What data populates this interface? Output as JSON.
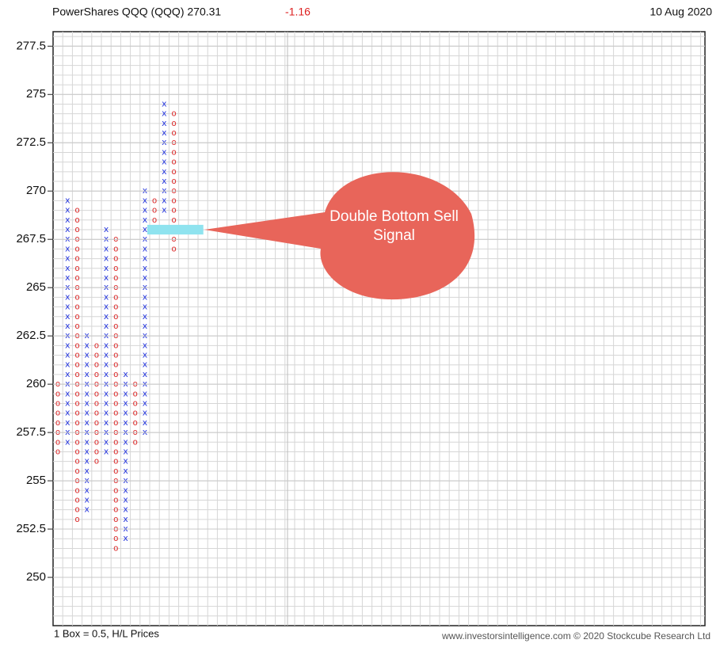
{
  "chart_data": {
    "type": "point-and-figure",
    "title": "PowerShares QQQ (QQQ) 270.31",
    "change": "-1.16",
    "date": "10 Aug 2020",
    "box_note": "1 Box = 0.5, H/L Prices",
    "source": "www.investorsintelligence.com  © 2020  Stockcube  Research  Ltd",
    "annotation": "Double Bottom Sell Signal",
    "box_size": 0.5,
    "x_color": "#2233dd",
    "o_color": "#dd3333",
    "ylim": [
      247.5,
      278.25
    ],
    "yticks": [
      250,
      252.5,
      255,
      257.5,
      260,
      262.5,
      265,
      267.5,
      270,
      272.5,
      275,
      277.5
    ],
    "signal_value": 268,
    "columns": [
      {
        "kind": "O",
        "low": 256.5,
        "high": 260
      },
      {
        "kind": "X",
        "low": 257,
        "high": 269.5
      },
      {
        "kind": "O",
        "low": 253,
        "high": 269
      },
      {
        "kind": "X",
        "low": 253.5,
        "high": 262.5
      },
      {
        "kind": "O",
        "low": 256,
        "high": 262
      },
      {
        "kind": "X",
        "low": 256.5,
        "high": 268
      },
      {
        "kind": "O",
        "low": 251.5,
        "high": 267.5
      },
      {
        "kind": "X",
        "low": 252,
        "high": 260.5
      },
      {
        "kind": "O",
        "low": 257,
        "high": 260
      },
      {
        "kind": "X",
        "low": 257.5,
        "high": 270
      },
      {
        "kind": "O",
        "low": 268.5,
        "high": 269.5
      },
      {
        "kind": "X",
        "low": 269,
        "high": 274.5
      },
      {
        "kind": "O",
        "low": 267,
        "high": 274
      }
    ]
  }
}
